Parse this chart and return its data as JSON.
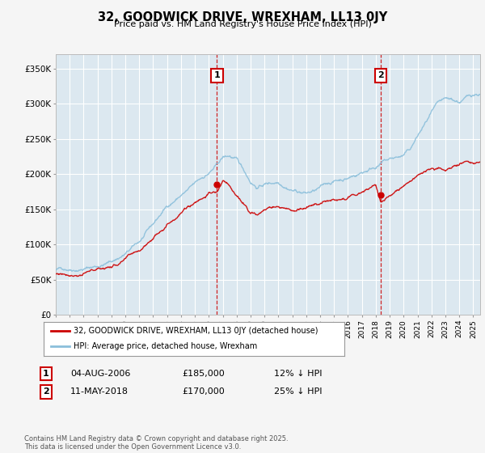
{
  "title": "32, GOODWICK DRIVE, WREXHAM, LL13 0JY",
  "subtitle": "Price paid vs. HM Land Registry's House Price Index (HPI)",
  "xlim": [
    1995.0,
    2025.5
  ],
  "ylim": [
    0,
    370000
  ],
  "yticks": [
    0,
    50000,
    100000,
    150000,
    200000,
    250000,
    300000,
    350000
  ],
  "ytick_labels": [
    "£0",
    "£50K",
    "£100K",
    "£150K",
    "£200K",
    "£250K",
    "£300K",
    "£350K"
  ],
  "xtick_years": [
    1995,
    1996,
    1997,
    1998,
    1999,
    2000,
    2001,
    2002,
    2003,
    2004,
    2005,
    2006,
    2007,
    2008,
    2009,
    2010,
    2011,
    2012,
    2013,
    2014,
    2015,
    2016,
    2017,
    2018,
    2019,
    2020,
    2021,
    2022,
    2023,
    2024,
    2025
  ],
  "hpi_color": "#8bbfdb",
  "sale_color": "#cc0000",
  "vline_color": "#cc0000",
  "plot_bg": "#dce8f0",
  "marker1_year": 2006.58,
  "marker2_year": 2018.36,
  "sale1_price_val": 185000,
  "sale2_price_val": 170000,
  "sale1_date": "04-AUG-2006",
  "sale1_price": "£185,000",
  "sale1_note": "12% ↓ HPI",
  "sale2_date": "11-MAY-2018",
  "sale2_price": "£170,000",
  "sale2_note": "25% ↓ HPI",
  "legend_label1": "32, GOODWICK DRIVE, WREXHAM, LL13 0JY (detached house)",
  "legend_label2": "HPI: Average price, detached house, Wrexham",
  "footnote": "Contains HM Land Registry data © Crown copyright and database right 2025.\nThis data is licensed under the Open Government Licence v3.0.",
  "bg_color": "#f5f5f5"
}
